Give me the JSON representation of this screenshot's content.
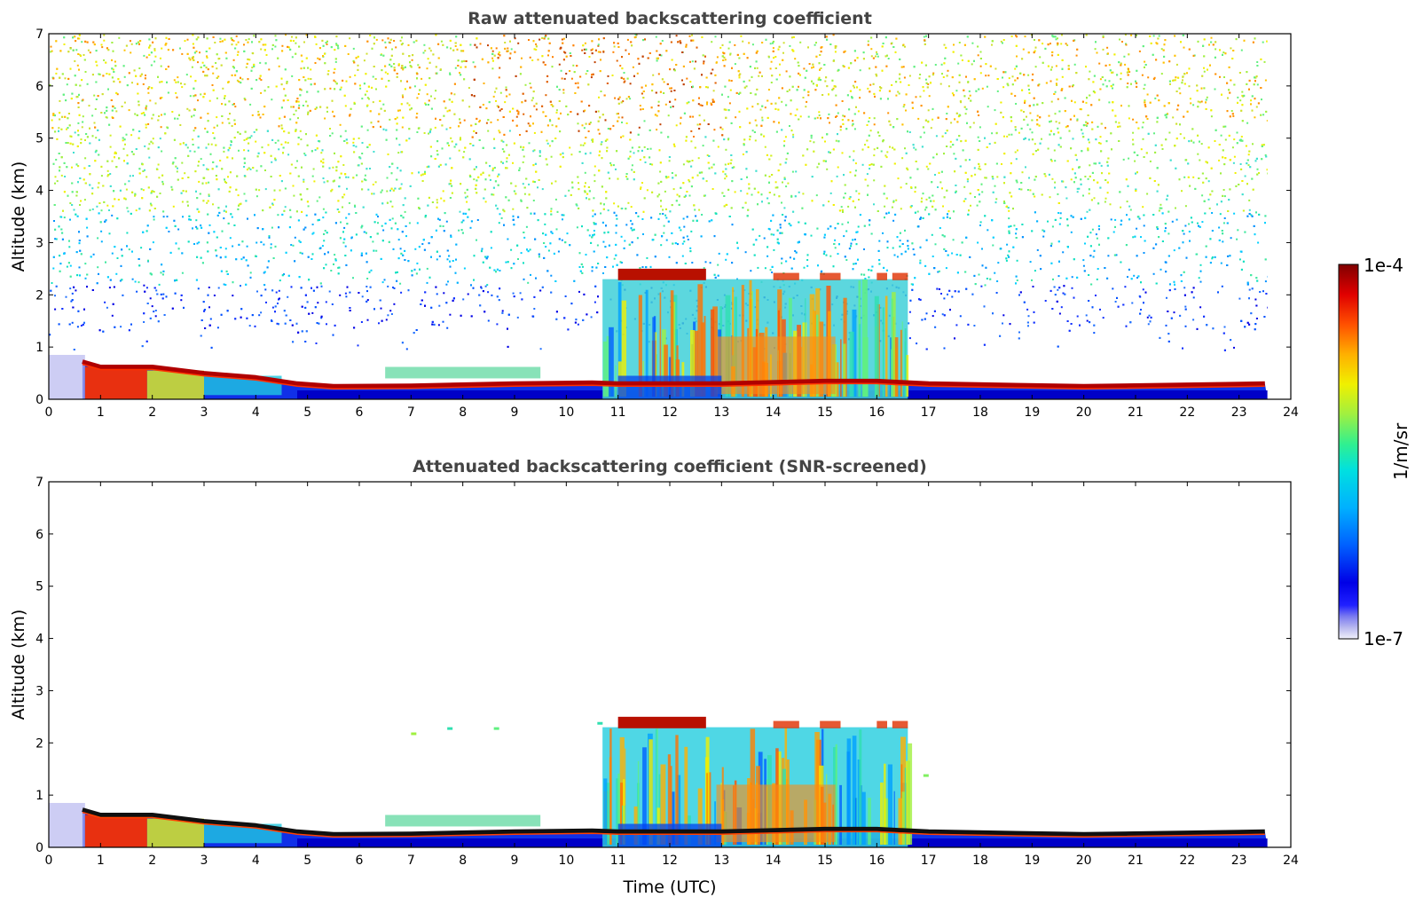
{
  "chart_data": [
    {
      "type": "heatmap",
      "title": "Raw attenuated backscattering coefficient",
      "xlabel": "",
      "ylabel": "Altitude (km)",
      "xlim": [
        0,
        24
      ],
      "ylim": [
        0,
        7
      ],
      "xticks": [
        "0",
        "1",
        "2",
        "3",
        "4",
        "5",
        "6",
        "7",
        "8",
        "9",
        "10",
        "11",
        "12",
        "13",
        "14",
        "15",
        "16",
        "17",
        "18",
        "19",
        "20",
        "21",
        "22",
        "23",
        "24"
      ],
      "yticks": [
        "0",
        "1",
        "2",
        "3",
        "4",
        "5",
        "6",
        "7"
      ],
      "data_end_time": 23.55,
      "features": [
        {
          "name": "boundary_layer_top",
          "points": [
            [
              0.65,
              0.72
            ],
            [
              1.0,
              0.62
            ],
            [
              2.0,
              0.62
            ],
            [
              3.0,
              0.5
            ],
            [
              4.0,
              0.42
            ],
            [
              4.8,
              0.3
            ],
            [
              5.5,
              0.25
            ],
            [
              7.0,
              0.26
            ],
            [
              9.0,
              0.3
            ],
            [
              10.5,
              0.32
            ],
            [
              11.0,
              0.3
            ],
            [
              13.0,
              0.3
            ],
            [
              15.0,
              0.35
            ],
            [
              16.0,
              0.35
            ],
            [
              17.0,
              0.3
            ],
            [
              20.0,
              0.25
            ],
            [
              23.5,
              0.3
            ]
          ]
        },
        {
          "name": "cloud_layer",
          "x": [
            10.7,
            16.6
          ],
          "base_km": 0,
          "top_km": 2.5
        },
        {
          "name": "cloud_top_band",
          "x": [
            11.0,
            12.7
          ],
          "alt_km": 2.4
        },
        {
          "name": "elevated_aerosol",
          "x": [
            6.5,
            9.5
          ],
          "alt_km": 0.55
        }
      ]
    },
    {
      "type": "heatmap",
      "title": "Attenuated backscattering coefficient (SNR-screened)",
      "xlabel": "Time (UTC)",
      "ylabel": "Altitude (km)",
      "xlim": [
        0,
        24
      ],
      "ylim": [
        0,
        7
      ],
      "xticks": [
        "0",
        "1",
        "2",
        "3",
        "4",
        "5",
        "6",
        "7",
        "8",
        "9",
        "10",
        "11",
        "12",
        "13",
        "14",
        "15",
        "16",
        "17",
        "18",
        "19",
        "20",
        "21",
        "22",
        "23",
        "24"
      ],
      "yticks": [
        "0",
        "1",
        "2",
        "3",
        "4",
        "5",
        "6",
        "7"
      ],
      "data_end_time": 23.55
    }
  ],
  "colorbar": {
    "label": "1/m/sr",
    "min_label": "1e-7",
    "max_label": "1e-4",
    "scale": "log",
    "colors": [
      "#e6e6f7",
      "#b8b8ef",
      "#7a7af0",
      "#2020ff",
      "#0000e6",
      "#0050ff",
      "#0098ff",
      "#00d0ff",
      "#10e8c0",
      "#60f080",
      "#b0f040",
      "#f0f000",
      "#ffc000",
      "#ff8000",
      "#ff3000",
      "#e00000",
      "#800000"
    ]
  }
}
